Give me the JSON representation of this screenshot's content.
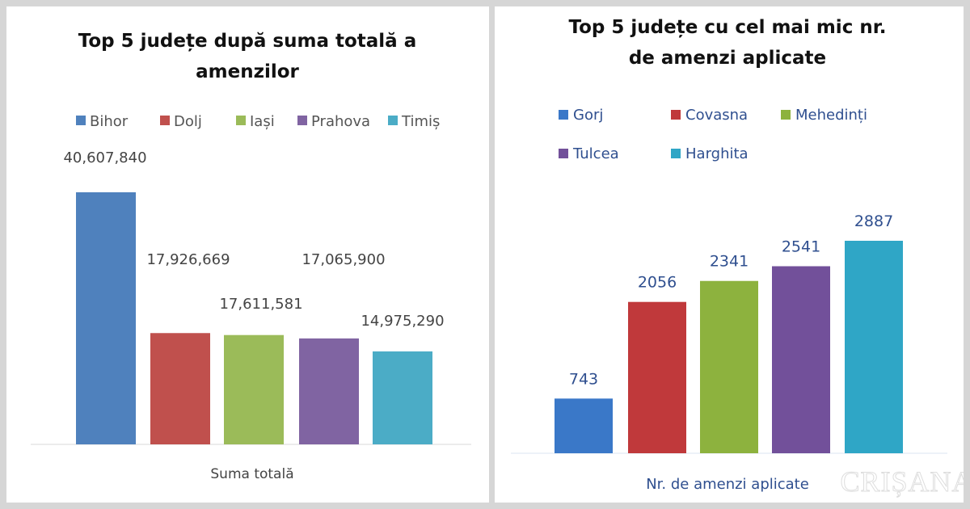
{
  "chart_data": [
    {
      "type": "bar",
      "title": "Top 5 județe după suma totală a amenzilor",
      "title_lines": [
        "Top 5 județe după suma totală a",
        "amenzilor"
      ],
      "xlabel": "Suma totală",
      "legend_position": "top",
      "categories": [
        "Bihor",
        "Dolj",
        "Iași",
        "Prahova",
        "Timiș"
      ],
      "values": [
        40607840,
        17926669,
        17611581,
        17065900,
        14975290
      ],
      "labels": [
        "40,607,840",
        "17,926,669",
        "17,611,581",
        "17,065,900",
        "14,975,290"
      ],
      "colors": [
        "#4f81bd",
        "#c0504d",
        "#9bbb59",
        "#8064a2",
        "#4bacc6"
      ],
      "ylim": [
        0,
        40607840
      ]
    },
    {
      "type": "bar",
      "title": "Top 5 județe cu cel mai mic nr. de amenzi aplicate",
      "title_lines": [
        "Top 5 județe cu cel mai mic nr.",
        "de amenzi aplicate"
      ],
      "xlabel": "Nr. de amenzi aplicate",
      "legend_position": "top",
      "categories": [
        "Gorj",
        "Covasna",
        "Mehedinți",
        "Tulcea",
        "Harghita"
      ],
      "values": [
        743,
        2056,
        2341,
        2541,
        2887
      ],
      "labels": [
        "743",
        "2056",
        "2341",
        "2541",
        "2887"
      ],
      "colors": [
        "#3a78c8",
        "#c0393b",
        "#8db23e",
        "#72509a",
        "#2fa6c6"
      ],
      "ylim": [
        0,
        2887
      ]
    }
  ],
  "watermark": "CRIȘANA"
}
